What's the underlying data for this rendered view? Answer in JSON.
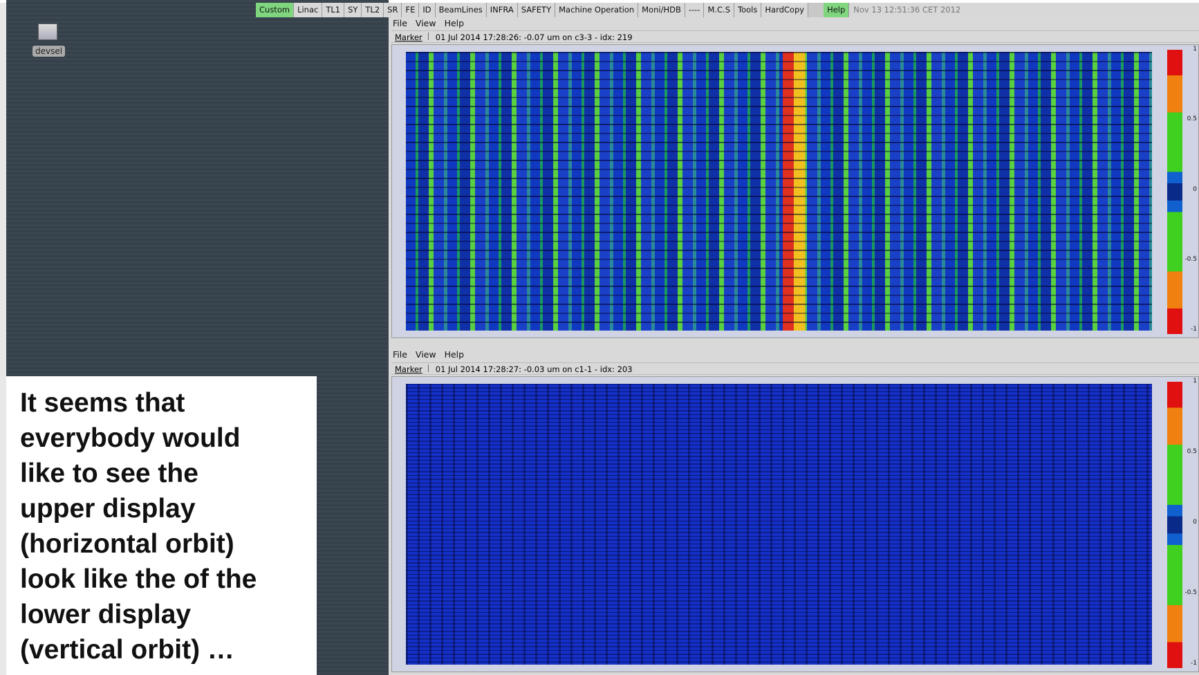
{
  "toolbar": {
    "buttons": [
      "Custom",
      "Linac",
      "TL1",
      "SY",
      "TL2",
      "SR",
      "FE",
      "ID",
      "BeamLines",
      "INFRA",
      "SAFETY",
      "Machine Operation",
      "Moni/HDB",
      "----",
      "M.C.S",
      "Tools",
      "HardCopy"
    ],
    "help": "Help",
    "clock": "Nov 13 12:51:36 CET 2012"
  },
  "desktop": {
    "icon_label": "devsel"
  },
  "note": {
    "lines": [
      "It seems that",
      "everybody would",
      "like to see the",
      "upper display",
      "(horizontal orbit)",
      "look like the of the",
      "lower display",
      "(vertical orbit) …"
    ]
  },
  "windows": [
    {
      "menu": [
        "File",
        "View",
        "Help"
      ],
      "marker_label": "Marker",
      "marker_text": "01 Jul 2014  17:28:26:  -0.07 um  on c3-3 - idx: 219",
      "colorbar_ticks": [
        "1",
        "0.5",
        "0",
        "-0.5",
        "-1"
      ]
    },
    {
      "menu": [
        "File",
        "View",
        "Help"
      ],
      "marker_label": "Marker",
      "marker_text": "01 Jul 2014  17:28:27:  -0.03 um  on c1-1 - idx: 203",
      "colorbar_ticks": [
        "1",
        "0.5",
        "0",
        "-0.5",
        "-1"
      ]
    }
  ]
}
